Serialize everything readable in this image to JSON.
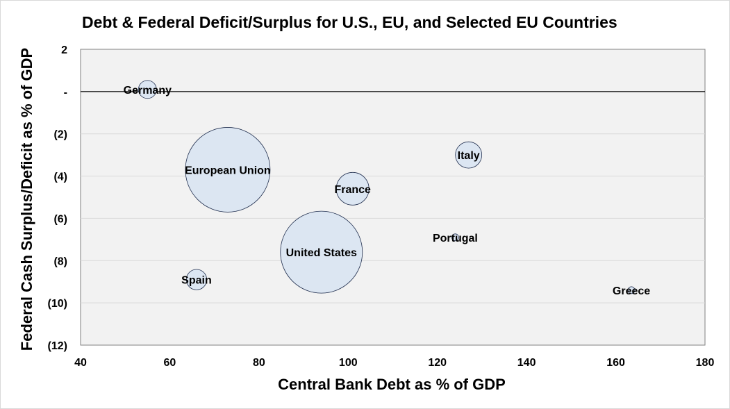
{
  "chart_data": {
    "type": "bubble",
    "title": "Debt & Federal Deficit/Surplus for U.S., EU, and Selected EU Countries",
    "xlabel": "Central Bank Debt as % of GDP",
    "ylabel": "Federal Cash Surplus/Deficit as % of GDP",
    "xlim": [
      40,
      180
    ],
    "ylim": [
      -12,
      2
    ],
    "x_ticks": [
      "40",
      "60",
      "80",
      "100",
      "120",
      "140",
      "160",
      "180"
    ],
    "y_ticks": [
      {
        "value": 2,
        "label": "2"
      },
      {
        "value": 0,
        "label": "-"
      },
      {
        "value": -2,
        "label": "(2)"
      },
      {
        "value": -4,
        "label": "(4)"
      },
      {
        "value": -6,
        "label": "(6)"
      },
      {
        "value": -8,
        "label": "(8)"
      },
      {
        "value": -10,
        "label": "(10)"
      },
      {
        "value": -12,
        "label": "(12)"
      }
    ],
    "grid": "horizontal",
    "plot_background": "#f2f2f2",
    "bubble_fill": "#dce6f2",
    "bubble_stroke": "#1f2d4d",
    "points": [
      {
        "label": "Germany",
        "x": 55,
        "y": 0.1,
        "size": 0.7
      },
      {
        "label": "European Union",
        "x": 73,
        "y": -3.7,
        "size": 15.5
      },
      {
        "label": "France",
        "x": 101,
        "y": -4.6,
        "size": 2.3
      },
      {
        "label": "Italy",
        "x": 127,
        "y": -3.0,
        "size": 1.5
      },
      {
        "label": "United States",
        "x": 94,
        "y": -7.6,
        "size": 14.5
      },
      {
        "label": "Portugal",
        "x": 124,
        "y": -6.9,
        "size": 0.05
      },
      {
        "label": "Spain",
        "x": 66,
        "y": -8.9,
        "size": 0.9
      },
      {
        "label": "Greece",
        "x": 163.5,
        "y": -9.4,
        "size": 0.05
      }
    ]
  }
}
